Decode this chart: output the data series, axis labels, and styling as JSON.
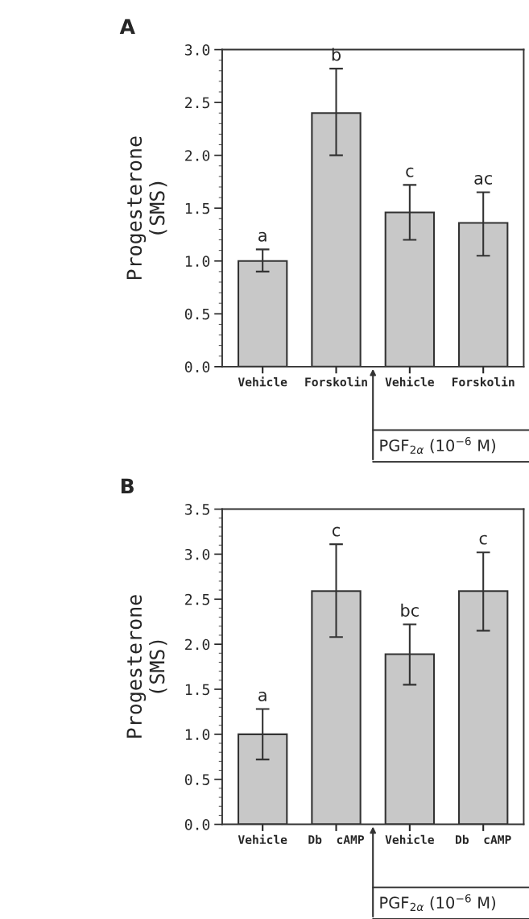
{
  "chart_data": [
    {
      "type": "bar",
      "title": "A",
      "ylabel": "Progesterone\n(SMS)",
      "categories": [
        "Vehicle",
        "Forskolin",
        "Vehicle",
        "Forskolin"
      ],
      "values": [
        1.0,
        2.4,
        1.46,
        1.36
      ],
      "errors": [
        [
          0.9,
          1.11
        ],
        [
          2.0,
          2.82
        ],
        [
          1.2,
          1.72
        ],
        [
          1.05,
          1.65
        ]
      ],
      "color": "#c8c8c8",
      "ylim": [
        0,
        3.0
      ],
      "yticks": [
        {
          "value": 0,
          "label": "0.0"
        },
        0.5,
        {
          "value": 1,
          "label": "1.0"
        },
        1.5,
        {
          "value": 2,
          "label": "2.0"
        },
        2.5,
        {
          "value": 3,
          "label": "3.0"
        }
      ],
      "grid": false,
      "annotations": [
        "a",
        "b",
        "c",
        "ac",
        "PGF$_{2α}$ (10$^{−6}$ M)"
      ]
    },
    {
      "type": "bar",
      "title": "B",
      "ylabel": "Progesterone\n(SMS)",
      "categories": [
        "Vehicle",
        "Db  cAMP",
        "Vehicle",
        "Db  cAMP"
      ],
      "values": [
        1.0,
        2.59,
        1.89,
        2.59
      ],
      "errors": [
        [
          0.72,
          1.28
        ],
        [
          2.08,
          3.11
        ],
        [
          1.55,
          2.22
        ],
        [
          2.15,
          3.02
        ]
      ],
      "color": "#c8c8c8",
      "ylim": [
        0,
        3.5
      ],
      "yticks": [
        {
          "value": 0,
          "label": "0.0"
        },
        0.5,
        {
          "value": 1,
          "label": "1.0"
        },
        1.5,
        {
          "value": 2,
          "label": "2.0"
        },
        2.5,
        {
          "value": 3,
          "label": "3.0"
        },
        3.5
      ],
      "grid": false,
      "annotations": [
        "a",
        "c",
        "bc",
        "c",
        "PGF$_{2α}$ (10$^{−6}$ M)"
      ]
    }
  ]
}
